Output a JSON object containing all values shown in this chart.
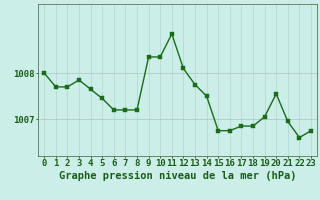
{
  "hours": [
    0,
    1,
    2,
    3,
    4,
    5,
    6,
    7,
    8,
    9,
    10,
    11,
    12,
    13,
    14,
    15,
    16,
    17,
    18,
    19,
    20,
    21,
    22,
    23
  ],
  "pressure": [
    1008.0,
    1007.7,
    1007.7,
    1007.85,
    1007.65,
    1007.45,
    1007.2,
    1007.2,
    1007.2,
    1008.35,
    1008.35,
    1008.85,
    1008.1,
    1007.75,
    1007.5,
    1006.75,
    1006.75,
    1006.85,
    1006.85,
    1007.05,
    1007.55,
    1006.95,
    1006.6,
    1006.75
  ],
  "line_color": "#1a6b1a",
  "marker_color": "#1a6b1a",
  "bg_color": "#cceee8",
  "grid_color_v": "#b0d8cc",
  "grid_color_h": "#b0ccc8",
  "axis_color": "#557755",
  "xlabel": "Graphe pression niveau de la mer (hPa)",
  "ylabel_ticks": [
    1007,
    1008
  ],
  "ylim": [
    1006.2,
    1009.5
  ],
  "xlim": [
    -0.5,
    23.5
  ],
  "tick_label_color": "#1a5c1a",
  "xlabel_color": "#1a5c1a",
  "font_size_xlabel": 7.5,
  "font_size_ticks": 6.5,
  "marker_size": 2.5,
  "line_width": 1.0
}
